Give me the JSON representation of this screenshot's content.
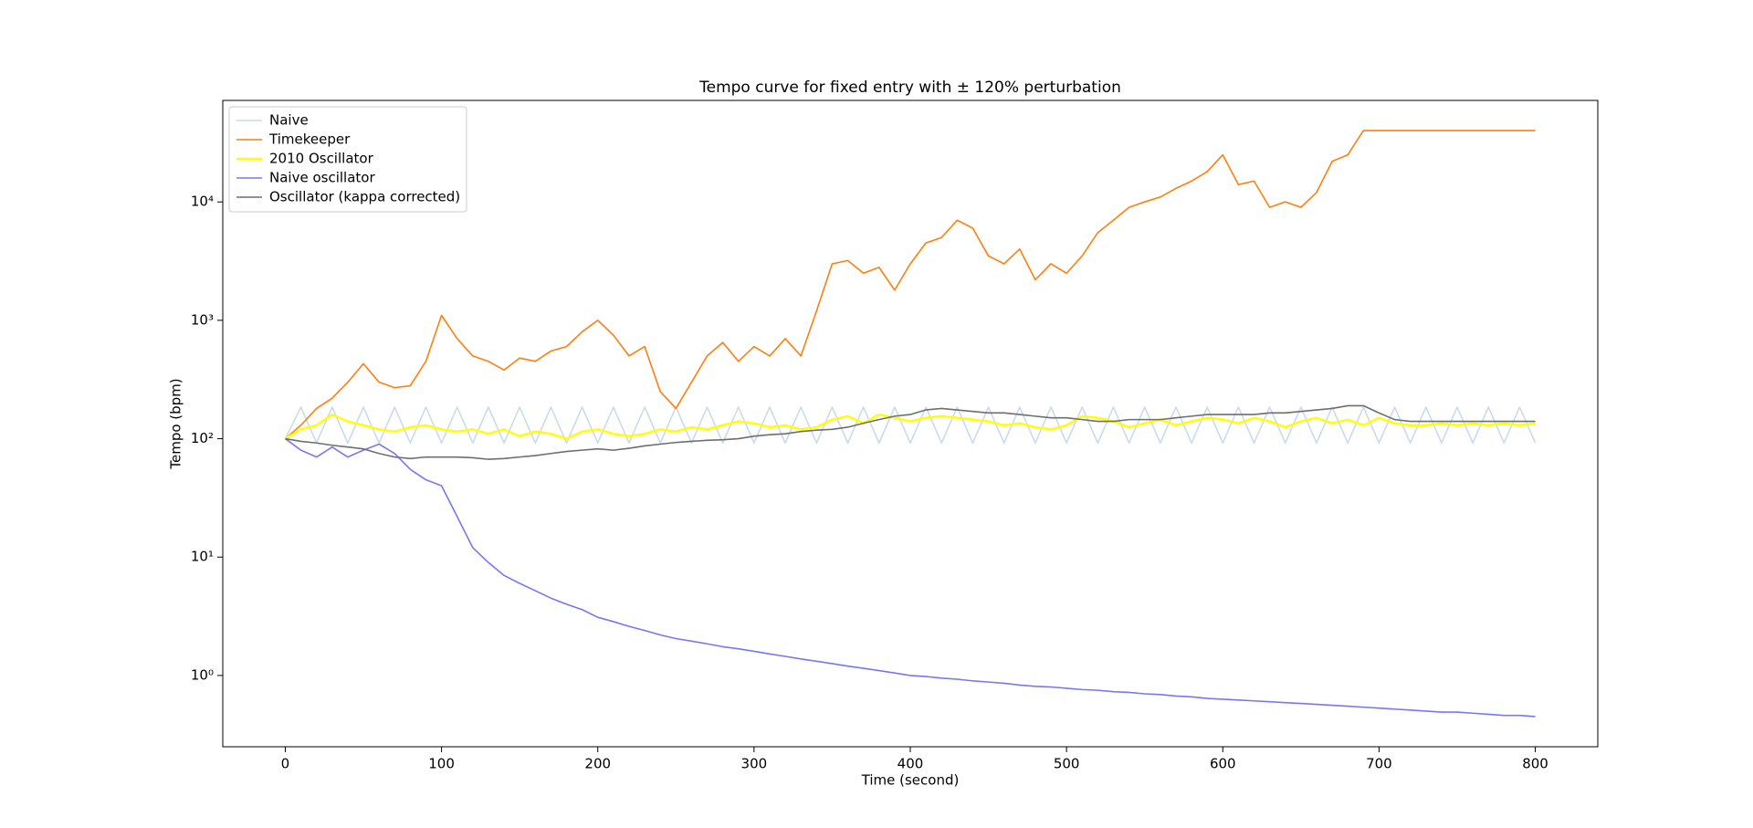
{
  "chart_data": {
    "type": "line",
    "title": "Tempo curve for fixed entry with ± 120% perturbation",
    "xlabel": "Time (second)",
    "ylabel": "Tempo (bpm)",
    "xlim": [
      -40,
      840
    ],
    "ylim": [
      0.25,
      72000
    ],
    "log_y": true,
    "legend": "upper left",
    "xticks": [
      0,
      100,
      200,
      300,
      400,
      500,
      600,
      700,
      800
    ],
    "yticks": [
      {
        "value": 1,
        "label": "10⁰"
      },
      {
        "value": 10,
        "label": "10¹"
      },
      {
        "value": 100,
        "label": "10²"
      },
      {
        "value": 1000,
        "label": "10³"
      },
      {
        "value": 10000,
        "label": "10⁴"
      }
    ],
    "x": [
      0,
      10,
      20,
      30,
      40,
      50,
      60,
      70,
      80,
      90,
      100,
      110,
      120,
      130,
      140,
      150,
      160,
      170,
      180,
      190,
      200,
      210,
      220,
      230,
      240,
      250,
      260,
      270,
      280,
      290,
      300,
      310,
      320,
      330,
      340,
      350,
      360,
      370,
      380,
      390,
      400,
      410,
      420,
      430,
      440,
      450,
      460,
      470,
      480,
      490,
      500,
      510,
      520,
      530,
      540,
      550,
      560,
      570,
      580,
      590,
      600,
      610,
      620,
      630,
      640,
      650,
      660,
      670,
      680,
      690,
      700,
      710,
      720,
      730,
      740,
      750,
      760,
      770,
      780,
      790,
      800
    ],
    "series": [
      {
        "name": "Naive",
        "color": "#c9dcec",
        "values": [
          100,
          185,
          92,
          185,
          92,
          185,
          92,
          185,
          92,
          185,
          92,
          185,
          92,
          185,
          92,
          185,
          92,
          185,
          92,
          185,
          92,
          185,
          92,
          185,
          92,
          185,
          92,
          185,
          92,
          185,
          92,
          185,
          92,
          185,
          92,
          185,
          92,
          185,
          92,
          185,
          92,
          185,
          92,
          185,
          92,
          185,
          92,
          185,
          92,
          185,
          92,
          185,
          92,
          185,
          92,
          185,
          92,
          185,
          92,
          185,
          92,
          185,
          92,
          185,
          92,
          185,
          92,
          185,
          92,
          185,
          92,
          185,
          92,
          185,
          92,
          185,
          92,
          185,
          92,
          185,
          92
        ]
      },
      {
        "name": "Timekeeper",
        "color": "#ff7f0e",
        "values": [
          100,
          130,
          180,
          220,
          300,
          430,
          300,
          270,
          280,
          450,
          1100,
          700,
          500,
          450,
          380,
          480,
          450,
          550,
          600,
          800,
          1000,
          750,
          500,
          600,
          250,
          180,
          300,
          500,
          650,
          450,
          600,
          500,
          700,
          500,
          1200,
          3000,
          3200,
          2500,
          2800,
          1800,
          3000,
          4500,
          5000,
          7000,
          6000,
          3500,
          3000,
          4000,
          2200,
          3000,
          2500,
          3500,
          5500,
          7000,
          9000,
          10000,
          11000,
          13000,
          15000,
          18000,
          25000,
          14000,
          15000,
          9000,
          10000,
          9000,
          12000,
          22000,
          25000,
          40000,
          40000,
          40000,
          40000,
          40000,
          40000,
          40000,
          40000,
          40000,
          40000,
          40000,
          40000
        ]
      },
      {
        "name": "2010 Oscillator",
        "color": "#ffff00",
        "values": [
          100,
          120,
          130,
          160,
          140,
          130,
          120,
          115,
          125,
          130,
          120,
          115,
          120,
          110,
          120,
          105,
          115,
          110,
          100,
          115,
          120,
          110,
          105,
          110,
          120,
          115,
          125,
          120,
          130,
          140,
          135,
          125,
          130,
          120,
          125,
          145,
          155,
          135,
          160,
          150,
          140,
          150,
          155,
          150,
          145,
          140,
          130,
          135,
          125,
          120,
          130,
          155,
          150,
          140,
          125,
          135,
          145,
          130,
          140,
          150,
          145,
          135,
          150,
          140,
          125,
          140,
          150,
          135,
          145,
          130,
          150,
          135,
          130,
          130,
          135,
          130,
          135,
          130,
          135,
          130,
          135
        ]
      },
      {
        "name": "Naive oscillator",
        "color": "#7777f5",
        "values": [
          100,
          80,
          70,
          85,
          70,
          80,
          90,
          75,
          55,
          45,
          40,
          22,
          12,
          9,
          7,
          6,
          5.2,
          4.5,
          4,
          3.6,
          3.1,
          2.85,
          2.6,
          2.4,
          2.2,
          2.05,
          1.95,
          1.85,
          1.75,
          1.68,
          1.6,
          1.52,
          1.45,
          1.38,
          1.32,
          1.26,
          1.2,
          1.15,
          1.1,
          1.05,
          1.0,
          0.98,
          0.95,
          0.93,
          0.9,
          0.88,
          0.86,
          0.83,
          0.81,
          0.8,
          0.78,
          0.76,
          0.75,
          0.73,
          0.72,
          0.7,
          0.69,
          0.67,
          0.66,
          0.64,
          0.63,
          0.62,
          0.61,
          0.6,
          0.59,
          0.58,
          0.57,
          0.56,
          0.55,
          0.54,
          0.53,
          0.52,
          0.51,
          0.5,
          0.49,
          0.49,
          0.48,
          0.47,
          0.46,
          0.46,
          0.45
        ]
      },
      {
        "name": "Oscillator (kappa corrected)",
        "color": "#6e6e6e",
        "values": [
          100,
          95,
          92,
          88,
          85,
          82,
          75,
          70,
          68,
          70,
          70,
          70,
          69,
          67,
          68,
          70,
          72,
          75,
          78,
          80,
          82,
          80,
          83,
          87,
          90,
          93,
          95,
          97,
          98,
          100,
          105,
          108,
          110,
          115,
          118,
          120,
          125,
          135,
          145,
          155,
          160,
          175,
          180,
          175,
          170,
          165,
          165,
          160,
          155,
          150,
          150,
          145,
          140,
          140,
          145,
          145,
          145,
          150,
          155,
          160,
          160,
          160,
          160,
          165,
          165,
          170,
          175,
          180,
          190,
          190,
          165,
          145,
          140,
          140,
          140,
          140,
          140,
          140,
          140,
          140,
          140
        ]
      }
    ]
  }
}
